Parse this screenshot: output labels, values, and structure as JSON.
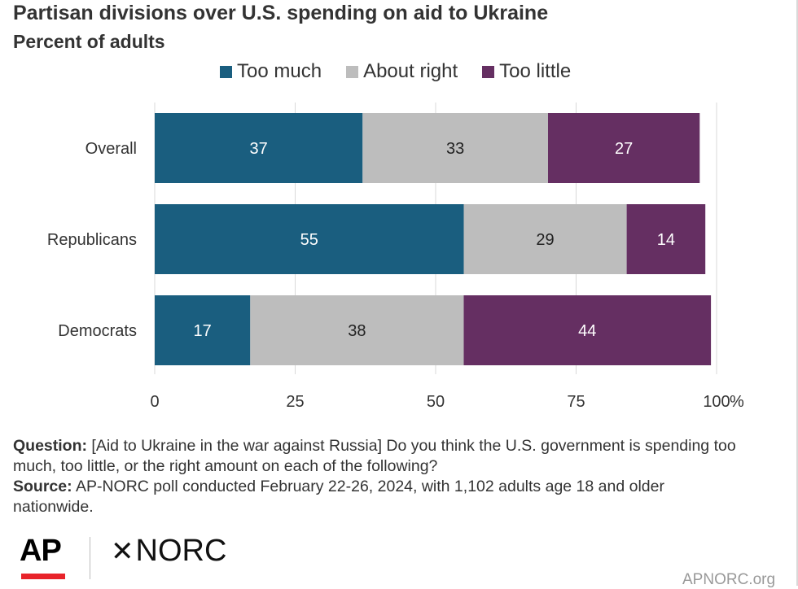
{
  "header": {
    "title": "Partisan divisions over U.S. spending on aid to Ukraine",
    "subtitle": "Percent of adults"
  },
  "legend": [
    {
      "label": "Too much",
      "color": "#1a5e7f"
    },
    {
      "label": "About right",
      "color": "#bdbdbd"
    },
    {
      "label": "Too little",
      "color": "#652f62"
    }
  ],
  "chart_data": {
    "type": "bar",
    "orientation": "horizontal",
    "stacked": true,
    "categories": [
      "Overall",
      "Republicans",
      "Democrats"
    ],
    "series": [
      {
        "name": "Too much",
        "values": [
          37,
          55,
          17
        ],
        "color": "#1a5e7f",
        "label_color": "#ffffff"
      },
      {
        "name": "About right",
        "values": [
          33,
          29,
          38
        ],
        "color": "#bdbdbd",
        "label_color": "#222222"
      },
      {
        "name": "Too little",
        "values": [
          27,
          14,
          44
        ],
        "color": "#652f62",
        "label_color": "#ffffff"
      }
    ],
    "xlim": [
      0,
      100
    ],
    "xticks": [
      "0",
      "25",
      "50",
      "75",
      "100"
    ],
    "x_unit": "%",
    "grid": true,
    "legend_position": "top"
  },
  "footer": {
    "question_label": "Question:",
    "question_text": "[Aid to Ukraine in the war against Russia] Do you think the U.S. government is spending too much, too little, or the right amount on each of the following?",
    "source_label": "Source:",
    "source_text": "AP-NORC poll conducted February 22-26, 2024, with 1,102 adults age 18 and older nationwide.",
    "logo_ap": "AP",
    "logo_norc": "NORC",
    "site": "APNORC.org"
  }
}
